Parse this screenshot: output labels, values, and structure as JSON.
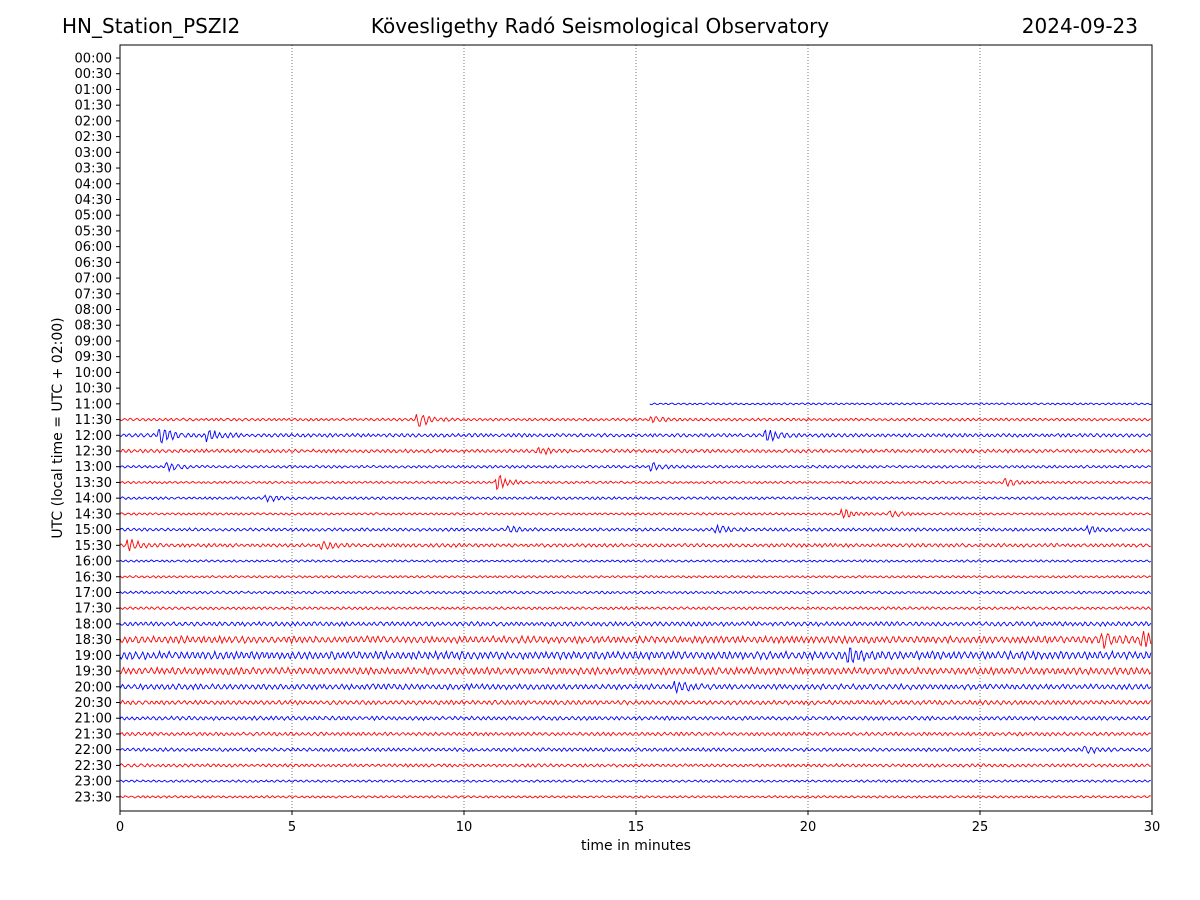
{
  "header": {
    "station": "HN_Station_PSZI2",
    "observatory": "Kövesligethy Radó Seismological Observatory",
    "date": "2024-09-23"
  },
  "colors": {
    "trace_a": "#ff0000",
    "trace_b": "#0000ff",
    "grid": "#555555"
  },
  "chart_data": {
    "type": "line",
    "title": "Kövesligethy Radó Seismological Observatory",
    "xlabel": "time in minutes",
    "ylabel": "UTC (local time = UTC + 02:00)",
    "xlim": [
      0,
      30
    ],
    "xticks": [
      0,
      5,
      10,
      15,
      20,
      25,
      30
    ],
    "grid": "vertical dotted at 5-minute intervals",
    "rows": [
      "00:00",
      "00:30",
      "01:00",
      "01:30",
      "02:00",
      "02:30",
      "03:00",
      "03:30",
      "04:00",
      "04:30",
      "05:00",
      "05:30",
      "06:00",
      "06:30",
      "07:00",
      "07:30",
      "08:00",
      "08:30",
      "09:00",
      "09:30",
      "10:00",
      "10:30",
      "11:00",
      "11:30",
      "12:00",
      "12:30",
      "13:00",
      "13:30",
      "14:00",
      "14:30",
      "15:00",
      "15:30",
      "16:00",
      "16:30",
      "17:00",
      "17:30",
      "18:00",
      "18:30",
      "19:00",
      "19:30",
      "20:00",
      "20:30",
      "21:00",
      "21:30",
      "22:00",
      "22:30",
      "23:00",
      "23:30"
    ],
    "traces": [
      {
        "row": "11:00",
        "color": "blue",
        "start": 15.4,
        "end": 30,
        "amp": 0.25,
        "events": []
      },
      {
        "row": "11:30",
        "color": "red",
        "start": 0,
        "end": 30,
        "amp": 0.35,
        "events": [
          {
            "t": 8.7,
            "a": 1.6
          },
          {
            "t": 15.5,
            "a": 0.6
          }
        ]
      },
      {
        "row": "12:00",
        "color": "blue",
        "start": 0,
        "end": 30,
        "amp": 0.45,
        "events": [
          {
            "t": 1.2,
            "a": 2.2
          },
          {
            "t": 2.6,
            "a": 1.2
          },
          {
            "t": 18.8,
            "a": 1.6
          }
        ]
      },
      {
        "row": "12:30",
        "color": "red",
        "start": 0,
        "end": 30,
        "amp": 0.45,
        "events": [
          {
            "t": 12.2,
            "a": 0.8
          }
        ]
      },
      {
        "row": "13:00",
        "color": "blue",
        "start": 0,
        "end": 30,
        "amp": 0.35,
        "events": [
          {
            "t": 1.4,
            "a": 0.9
          },
          {
            "t": 15.5,
            "a": 0.9
          }
        ]
      },
      {
        "row": "13:30",
        "color": "red",
        "start": 0,
        "end": 30,
        "amp": 0.3,
        "events": [
          {
            "t": 11.0,
            "a": 2.0
          },
          {
            "t": 25.8,
            "a": 0.8
          }
        ]
      },
      {
        "row": "14:00",
        "color": "blue",
        "start": 0,
        "end": 30,
        "amp": 0.35,
        "events": [
          {
            "t": 4.3,
            "a": 0.7
          }
        ]
      },
      {
        "row": "14:30",
        "color": "red",
        "start": 0,
        "end": 30,
        "amp": 0.3,
        "events": [
          {
            "t": 21.0,
            "a": 1.3
          },
          {
            "t": 22.4,
            "a": 0.7
          }
        ]
      },
      {
        "row": "15:00",
        "color": "blue",
        "start": 0,
        "end": 30,
        "amp": 0.4,
        "events": [
          {
            "t": 11.3,
            "a": 0.8
          },
          {
            "t": 17.4,
            "a": 0.8
          },
          {
            "t": 28.2,
            "a": 0.8
          }
        ]
      },
      {
        "row": "15:30",
        "color": "red",
        "start": 0,
        "end": 30,
        "amp": 0.45,
        "events": [
          {
            "t": 0.3,
            "a": 1.2
          },
          {
            "t": 5.9,
            "a": 1.0
          }
        ]
      },
      {
        "row": "16:00",
        "color": "blue",
        "start": 0,
        "end": 30,
        "amp": 0.3,
        "events": []
      },
      {
        "row": "16:30",
        "color": "red",
        "start": 0,
        "end": 30,
        "amp": 0.3,
        "events": []
      },
      {
        "row": "17:00",
        "color": "blue",
        "start": 0,
        "end": 30,
        "amp": 0.35,
        "events": []
      },
      {
        "row": "17:30",
        "color": "red",
        "start": 0,
        "end": 30,
        "amp": 0.35,
        "events": []
      },
      {
        "row": "18:00",
        "color": "blue",
        "start": 0,
        "end": 30,
        "amp": 0.55,
        "events": []
      },
      {
        "row": "18:30",
        "color": "red",
        "start": 0,
        "end": 30,
        "amp": 0.9,
        "events": [
          {
            "t": 28.6,
            "a": 1.5
          },
          {
            "t": 29.7,
            "a": 1.5
          }
        ]
      },
      {
        "row": "19:00",
        "color": "blue",
        "start": 0,
        "end": 30,
        "amp": 1.0,
        "events": [
          {
            "t": 21.2,
            "a": 1.4
          }
        ]
      },
      {
        "row": "19:30",
        "color": "red",
        "start": 0,
        "end": 30,
        "amp": 0.9,
        "events": []
      },
      {
        "row": "20:00",
        "color": "blue",
        "start": 0,
        "end": 30,
        "amp": 0.7,
        "events": [
          {
            "t": 16.2,
            "a": 1.2
          }
        ]
      },
      {
        "row": "20:30",
        "color": "red",
        "start": 0,
        "end": 30,
        "amp": 0.55,
        "events": []
      },
      {
        "row": "21:00",
        "color": "blue",
        "start": 0,
        "end": 30,
        "amp": 0.5,
        "events": []
      },
      {
        "row": "21:30",
        "color": "red",
        "start": 0,
        "end": 30,
        "amp": 0.45,
        "events": []
      },
      {
        "row": "22:00",
        "color": "blue",
        "start": 0,
        "end": 30,
        "amp": 0.45,
        "events": [
          {
            "t": 28.1,
            "a": 0.8
          }
        ]
      },
      {
        "row": "22:30",
        "color": "red",
        "start": 0,
        "end": 30,
        "amp": 0.4,
        "events": []
      },
      {
        "row": "23:00",
        "color": "blue",
        "start": 0,
        "end": 30,
        "amp": 0.3,
        "events": []
      },
      {
        "row": "23:30",
        "color": "red",
        "start": 0,
        "end": 30,
        "amp": 0.3,
        "events": []
      }
    ]
  }
}
